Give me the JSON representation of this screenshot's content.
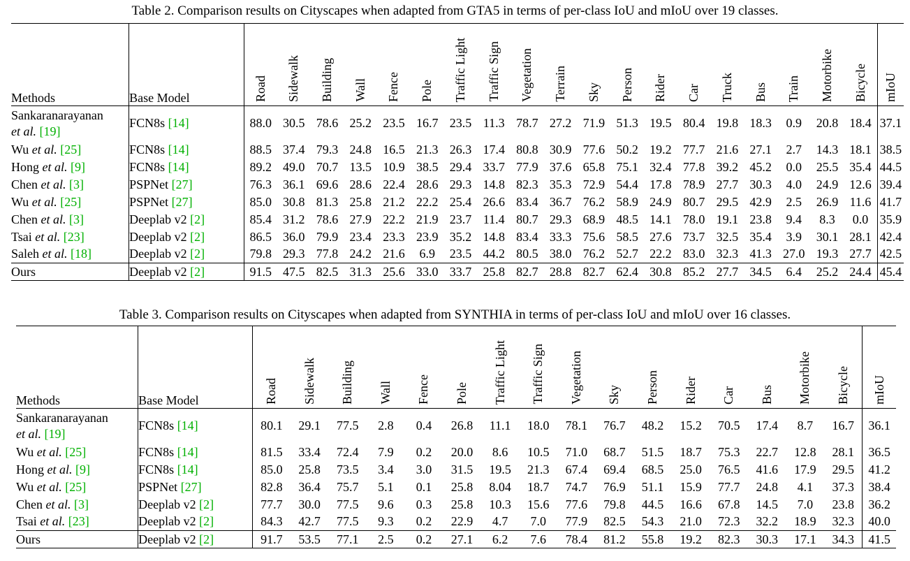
{
  "table2": {
    "caption": "Table 2. Comparison results on Cityscapes when adapted from GTA5 in terms of per-class IoU and mIoU over 19 classes.",
    "header_methods": "Methods",
    "header_base": "Base Model",
    "classes": [
      "Road",
      "Sidewalk",
      "Building",
      "Wall",
      "Fence",
      "Pole",
      "Traffic Light",
      "Traffic Sign",
      "Vegetation",
      "Terrain",
      "Sky",
      "Person",
      "Rider",
      "Car",
      "Truck",
      "Bus",
      "Train",
      "Motorbike",
      "Bicycle"
    ],
    "miou_label": "mIoU",
    "rows": [
      {
        "name": "Sankaranarayanan",
        "etal": "et al.",
        "ref": "[19]",
        "two_line": true,
        "base": "FCN8s",
        "base_ref": "[14]",
        "vals": [
          "88.0",
          "30.5",
          "78.6",
          "25.2",
          "23.5",
          "16.7",
          "23.5",
          "11.3",
          "78.7",
          "27.2",
          "71.9",
          "51.3",
          "19.5",
          "80.4",
          "19.8",
          "18.3",
          "0.9",
          "20.8",
          "18.4"
        ],
        "miou": "37.1",
        "bold": [],
        "miou_bold": false
      },
      {
        "name": "Wu",
        "etal": "et al.",
        "ref": "[25]",
        "base": "FCN8s",
        "base_ref": "[14]",
        "vals": [
          "88.5",
          "37.4",
          "79.3",
          "24.8",
          "16.5",
          "21.3",
          "26.3",
          "17.4",
          "80.8",
          "30.9",
          "77.6",
          "50.2",
          "19.2",
          "77.7",
          "21.6",
          "27.1",
          "2.7",
          "14.3",
          "18.1"
        ],
        "miou": "38.5",
        "bold": [],
        "miou_bold": false
      },
      {
        "name": "Hong",
        "etal": "et al.",
        "ref": "[9]",
        "base": "FCN8s",
        "base_ref": "[14]",
        "vals": [
          "89.2",
          "49.0",
          "70.7",
          "13.5",
          "10.9",
          "38.5",
          "29.4",
          "33.7",
          "77.9",
          "37.6",
          "65.8",
          "75.1",
          "32.4",
          "77.8",
          "39.2",
          "45.2",
          "0.0",
          "25.5",
          "35.4"
        ],
        "miou": "44.5",
        "bold": [
          1,
          5,
          11,
          12,
          14,
          18
        ],
        "miou_bold": false
      },
      {
        "name": "Chen",
        "etal": "et al.",
        "ref": "[3]",
        "base": "PSPNet",
        "base_ref": "[27]",
        "vals": [
          "76.3",
          "36.1",
          "69.6",
          "28.6",
          "22.4",
          "28.6",
          "29.3",
          "14.8",
          "82.3",
          "35.3",
          "72.9",
          "54.4",
          "17.8",
          "78.9",
          "27.7",
          "30.3",
          "4.0",
          "24.9",
          "12.6"
        ],
        "miou": "39.4",
        "bold": [],
        "miou_bold": false
      },
      {
        "name": "Wu",
        "etal": "et al.",
        "ref": "[25]",
        "base": "PSPNet",
        "base_ref": "[27]",
        "vals": [
          "85.0",
          "30.8",
          "81.3",
          "25.8",
          "21.2",
          "22.2",
          "25.4",
          "26.6",
          "83.4",
          "36.7",
          "76.2",
          "58.9",
          "24.9",
          "80.7",
          "29.5",
          "42.9",
          "2.5",
          "26.9",
          "11.6"
        ],
        "miou": "41.7",
        "bold": [
          8,
          15
        ],
        "miou_bold": false
      },
      {
        "name": "Chen",
        "etal": "et al.",
        "ref": "[3]",
        "base": "Deeplab v2",
        "base_ref": "[2]",
        "vals": [
          "85.4",
          "31.2",
          "78.6",
          "27.9",
          "22.2",
          "21.9",
          "23.7",
          "11.4",
          "80.7",
          "29.3",
          "68.9",
          "48.5",
          "14.1",
          "78.0",
          "19.1",
          "23.8",
          "9.4",
          "8.3",
          "0.0"
        ],
        "miou": "35.9",
        "bold": [],
        "miou_bold": false
      },
      {
        "name": "Tsai",
        "etal": "et al.",
        "ref": "[23]",
        "base": "Deeplab v2",
        "base_ref": "[2]",
        "vals": [
          "86.5",
          "36.0",
          "79.9",
          "23.4",
          "23.3",
          "23.9",
          "35.2",
          "14.8",
          "83.4",
          "33.3",
          "75.6",
          "58.5",
          "27.6",
          "73.7",
          "32.5",
          "35.4",
          "3.9",
          "30.1",
          "28.1"
        ],
        "miou": "42.4",
        "bold": [
          6,
          8,
          17
        ],
        "miou_bold": false
      },
      {
        "name": "Saleh",
        "etal": "et al.",
        "ref": "[18]",
        "base": "Deeplab v2",
        "base_ref": "[2]",
        "vals": [
          "79.8",
          "29.3",
          "77.8",
          "24.2",
          "21.6",
          "6.9",
          "23.5",
          "44.2",
          "80.5",
          "38.0",
          "76.2",
          "52.7",
          "22.2",
          "83.0",
          "32.3",
          "41.3",
          "27.0",
          "19.3",
          "27.7"
        ],
        "miou": "42.5",
        "bold": [
          7,
          9,
          16
        ],
        "miou_bold": false
      },
      {
        "name": "Ours",
        "etal": "",
        "ref": "",
        "ours": true,
        "base": "Deeplab v2",
        "base_ref": "[2]",
        "vals": [
          "91.5",
          "47.5",
          "82.5",
          "31.3",
          "25.6",
          "33.0",
          "33.7",
          "25.8",
          "82.7",
          "28.8",
          "82.7",
          "62.4",
          "30.8",
          "85.2",
          "27.7",
          "34.5",
          "6.4",
          "25.2",
          "24.4"
        ],
        "miou": "45.4",
        "bold": [
          0,
          2,
          3,
          4,
          10,
          13
        ],
        "miou_bold": true
      }
    ]
  },
  "table3": {
    "caption": "Table 3. Comparison results on Cityscapes when adapted from SYNTHIA in terms of per-class IoU and mIoU over 16 classes.",
    "header_methods": "Methods",
    "header_base": "Base Model",
    "classes": [
      "Road",
      "Sidewalk",
      "Building",
      "Wall",
      "Fence",
      "Pole",
      "Traffic Light",
      "Traffic Sign",
      "Vegetation",
      "Sky",
      "Person",
      "Rider",
      "Car",
      "Bus",
      "Motorbike",
      "Bicycle"
    ],
    "miou_label": "mIoU",
    "rows": [
      {
        "name": "Sankaranarayanan",
        "etal": "et al.",
        "ref": "[19]",
        "two_line": true,
        "base": "FCN8s",
        "base_ref": "[14]",
        "vals": [
          "80.1",
          "29.1",
          "77.5",
          "2.8",
          "0.4",
          "26.8",
          "11.1",
          "18.0",
          "78.1",
          "76.7",
          "48.2",
          "15.2",
          "70.5",
          "17.4",
          "8.7",
          "16.7"
        ],
        "miou": "36.1",
        "bold": [
          2
        ],
        "miou_bold": false
      },
      {
        "name": "Wu",
        "etal": "et al.",
        "ref": "[25]",
        "base": "FCN8s",
        "base_ref": "[14]",
        "vals": [
          "81.5",
          "33.4",
          "72.4",
          "7.9",
          "0.2",
          "20.0",
          "8.6",
          "10.5",
          "71.0",
          "68.7",
          "51.5",
          "18.7",
          "75.3",
          "22.7",
          "12.8",
          "28.1"
        ],
        "miou": "36.5",
        "bold": [],
        "miou_bold": false
      },
      {
        "name": "Hong",
        "etal": "et al.",
        "ref": "[9]",
        "base": "FCN8s",
        "base_ref": "[14]",
        "vals": [
          "85.0",
          "25.8",
          "73.5",
          "3.4",
          "3.0",
          "31.5",
          "19.5",
          "21.3",
          "67.4",
          "69.4",
          "68.5",
          "25.0",
          "76.5",
          "41.6",
          "17.9",
          "29.5"
        ],
        "miou": "41.2",
        "bold": [
          4,
          5,
          6,
          7,
          10,
          11,
          13
        ],
        "miou_bold": false
      },
      {
        "name": "Wu",
        "etal": "et al.",
        "ref": "[25]",
        "base": "PSPNet",
        "base_ref": "[27]",
        "vals": [
          "82.8",
          "36.4",
          "75.7",
          "5.1",
          "0.1",
          "25.8",
          "8.04",
          "18.7",
          "74.7",
          "76.9",
          "51.1",
          "15.9",
          "77.7",
          "24.8",
          "4.1",
          "37.3"
        ],
        "miou": "38.4",
        "bold": [
          15
        ],
        "miou_bold": false
      },
      {
        "name": "Chen",
        "etal": "et al.",
        "ref": "[3]",
        "base": "Deeplab v2",
        "base_ref": "[2]",
        "vals": [
          "77.7",
          "30.0",
          "77.5",
          "9.6",
          "0.3",
          "25.8",
          "10.3",
          "15.6",
          "77.6",
          "79.8",
          "44.5",
          "16.6",
          "67.8",
          "14.5",
          "7.0",
          "23.8"
        ],
        "miou": "36.2",
        "bold": [
          2,
          3
        ],
        "miou_bold": false
      },
      {
        "name": "Tsai",
        "etal": "et al.",
        "ref": "[23]",
        "base": "Deeplab v2",
        "base_ref": "[2]",
        "vals": [
          "84.3",
          "42.7",
          "77.5",
          "9.3",
          "0.2",
          "22.9",
          "4.7",
          "7.0",
          "77.9",
          "82.5",
          "54.3",
          "21.0",
          "72.3",
          "32.2",
          "18.9",
          "32.3"
        ],
        "miou": "40.0",
        "bold": [
          2,
          9,
          14
        ],
        "miou_bold": false
      },
      {
        "name": "Ours",
        "etal": "",
        "ref": "",
        "ours": true,
        "base": "Deeplab v2",
        "base_ref": "[2]",
        "vals": [
          "91.7",
          "53.5",
          "77.1",
          "2.5",
          "0.2",
          "27.1",
          "6.2",
          "7.6",
          "78.4",
          "81.2",
          "55.8",
          "19.2",
          "82.3",
          "30.3",
          "17.1",
          "34.3"
        ],
        "miou": "41.5",
        "bold": [
          0,
          1,
          8,
          12
        ],
        "miou_bold": true
      }
    ]
  }
}
